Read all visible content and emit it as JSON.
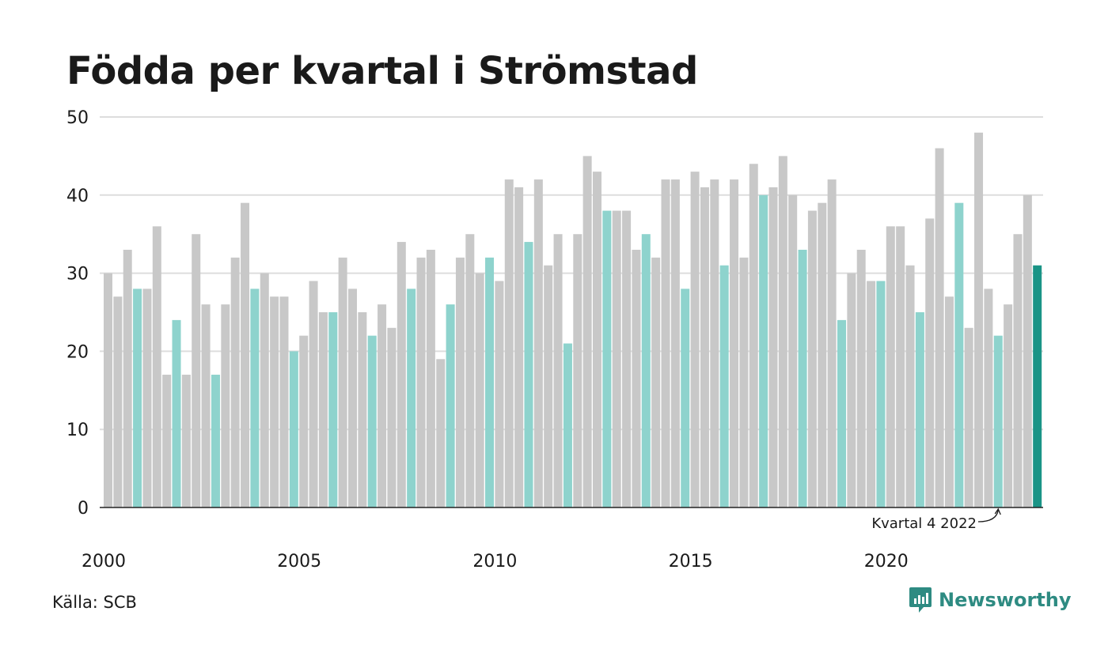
{
  "chart_data": {
    "type": "bar",
    "title": "Födda per kvartal i Strömstad",
    "source": "Källa: SCB",
    "brand": "Newsworthy",
    "ylim": [
      0,
      50
    ],
    "yticks": [
      0,
      10,
      20,
      30,
      40,
      50
    ],
    "xtick_labels": [
      "2000",
      "2005",
      "2010",
      "2015",
      "2020"
    ],
    "start_year": 2000,
    "colors": {
      "other_quarters": "#c8c8c8",
      "same_quarter": "#8ed3cd",
      "latest": "#1a9486",
      "grid": "#dddddd",
      "axis": "#222222",
      "brand": "#2e8b82"
    },
    "annotation": {
      "label": "Kvartal 4 2022",
      "target_index": 91
    },
    "values": [
      30,
      27,
      33,
      28,
      28,
      36,
      17,
      24,
      17,
      35,
      26,
      17,
      26,
      32,
      39,
      28,
      30,
      27,
      27,
      20,
      22,
      29,
      25,
      25,
      32,
      28,
      25,
      22,
      26,
      23,
      34,
      28,
      32,
      33,
      19,
      26,
      32,
      35,
      30,
      32,
      29,
      42,
      41,
      34,
      42,
      31,
      35,
      21,
      35,
      45,
      43,
      38,
      38,
      38,
      33,
      35,
      32,
      42,
      42,
      28,
      43,
      41,
      42,
      31,
      42,
      32,
      44,
      40,
      41,
      45,
      40,
      33,
      38,
      39,
      42,
      24,
      30,
      33,
      29,
      29,
      36,
      36,
      31,
      25,
      37,
      46,
      27,
      39,
      23,
      48,
      28,
      22,
      26,
      35,
      40,
      31
    ]
  }
}
